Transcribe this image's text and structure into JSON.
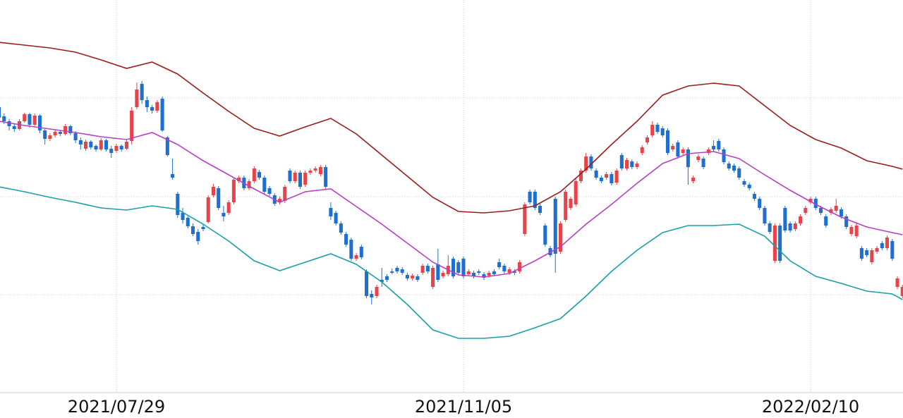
{
  "chart_data": {
    "type": "candlestick",
    "up_color": "#e8424a",
    "down_color": "#1e6fd0",
    "xlim": [
      0.2,
      177.1
    ],
    "ylim": [
      0,
      557
    ],
    "ygrid": [
      139,
      278,
      418
    ],
    "xticks": [
      {
        "value": 23,
        "label": "2021/07/29"
      },
      {
        "value": 91,
        "label": "2021/11/05"
      },
      {
        "value": 159,
        "label": "2022/02/10"
      }
    ],
    "candles": [
      [
        405,
        410,
        385,
        390
      ],
      [
        392,
        396,
        381,
        385
      ],
      [
        385,
        388,
        372,
        378
      ],
      [
        378,
        381,
        370,
        374
      ],
      [
        374,
        388,
        372,
        385
      ],
      [
        385,
        397,
        383,
        395
      ],
      [
        395,
        397,
        376,
        380
      ],
      [
        380,
        396,
        378,
        393
      ],
      [
        393,
        395,
        368,
        372
      ],
      [
        372,
        374,
        352,
        360
      ],
      [
        360,
        368,
        357,
        365
      ],
      [
        365,
        373,
        362,
        370
      ],
      [
        370,
        372,
        364,
        367
      ],
      [
        367,
        381,
        365,
        378
      ],
      [
        378,
        380,
        365,
        368
      ],
      [
        368,
        371,
        354,
        358
      ],
      [
        358,
        362,
        345,
        352
      ],
      [
        346,
        359,
        343,
        356
      ],
      [
        356,
        358,
        345,
        348
      ],
      [
        350,
        352,
        342,
        345
      ],
      [
        345,
        361,
        343,
        358
      ],
      [
        358,
        360,
        342,
        345
      ],
      [
        346,
        350,
        333,
        340
      ],
      [
        343,
        353,
        340,
        350
      ],
      [
        350,
        352,
        342,
        345
      ],
      [
        346,
        359,
        344,
        356
      ],
      [
        357,
        405,
        352,
        400
      ],
      [
        405,
        440,
        402,
        430
      ],
      [
        438,
        442,
        410,
        415
      ],
      [
        415,
        420,
        398,
        405
      ],
      [
        405,
        408,
        396,
        400
      ],
      [
        400,
        415,
        397,
        412
      ],
      [
        417,
        420,
        370,
        372
      ],
      [
        362,
        364,
        335,
        337
      ],
      [
        310,
        332,
        302,
        305
      ],
      [
        282,
        285,
        248,
        252
      ],
      [
        255,
        262,
        240,
        245
      ],
      [
        248,
        250,
        233,
        236
      ],
      [
        236,
        240,
        222,
        225
      ],
      [
        228,
        232,
        210,
        215
      ],
      [
        235,
        238,
        229,
        232
      ],
      [
        242,
        280,
        240,
        277
      ],
      [
        280,
        296,
        277,
        292
      ],
      [
        290,
        293,
        259,
        262
      ],
      [
        255,
        265,
        243,
        250
      ],
      [
        255,
        273,
        252,
        270
      ],
      [
        270,
        305,
        267,
        302
      ],
      [
        300,
        308,
        297,
        305
      ],
      [
        305,
        308,
        287,
        290
      ],
      [
        290,
        303,
        287,
        300
      ],
      [
        300,
        321,
        297,
        318
      ],
      [
        313,
        316,
        302,
        305
      ],
      [
        305,
        308,
        282,
        285
      ],
      [
        290,
        293,
        279,
        282
      ],
      [
        280,
        283,
        265,
        268
      ],
      [
        270,
        278,
        267,
        275
      ],
      [
        272,
        295,
        269,
        292
      ],
      [
        315,
        318,
        297,
        300
      ],
      [
        300,
        315,
        297,
        312
      ],
      [
        312,
        315,
        289,
        292
      ],
      [
        295,
        315,
        292,
        312
      ],
      [
        312,
        318,
        309,
        315
      ],
      [
        315,
        321,
        312,
        318
      ],
      [
        310,
        323,
        307,
        320
      ],
      [
        320,
        323,
        289,
        292
      ],
      [
        262,
        270,
        245,
        250
      ],
      [
        255,
        258,
        237,
        240
      ],
      [
        240,
        243,
        224,
        227
      ],
      [
        225,
        228,
        207,
        210
      ],
      [
        217,
        220,
        187,
        190
      ],
      [
        190,
        198,
        187,
        195
      ],
      [
        207,
        210,
        189,
        192
      ],
      [
        172,
        175,
        134,
        137
      ],
      [
        140,
        145,
        125,
        135
      ],
      [
        137,
        153,
        134,
        150
      ],
      [
        160,
        177,
        150,
        157
      ],
      [
        165,
        168,
        157,
        160
      ],
      [
        172,
        176,
        168,
        170
      ],
      [
        177,
        180,
        169,
        172
      ],
      [
        175,
        178,
        167,
        170
      ],
      [
        167,
        170,
        159,
        162
      ],
      [
        162,
        169,
        159,
        166
      ],
      [
        165,
        168,
        157,
        160
      ],
      [
        170,
        183,
        167,
        180
      ],
      [
        180,
        183,
        169,
        172
      ],
      [
        150,
        180,
        147,
        177
      ],
      [
        182,
        204,
        157,
        160
      ],
      [
        165,
        173,
        162,
        170
      ],
      [
        168,
        195,
        165,
        180
      ],
      [
        190,
        193,
        162,
        165
      ],
      [
        185,
        188,
        167,
        170
      ],
      [
        190,
        193,
        162,
        165
      ],
      [
        168,
        175,
        165,
        172
      ],
      [
        170,
        173,
        162,
        165
      ],
      [
        172,
        175,
        167,
        170
      ],
      [
        168,
        171,
        160,
        163
      ],
      [
        166,
        173,
        163,
        170
      ],
      [
        172,
        175,
        165,
        168
      ],
      [
        185,
        190,
        175,
        178
      ],
      [
        180,
        183,
        169,
        172
      ],
      [
        170,
        178,
        167,
        175
      ],
      [
        172,
        175,
        167,
        170
      ],
      [
        172,
        188,
        169,
        185
      ],
      [
        225,
        270,
        222,
        267
      ],
      [
        285,
        288,
        267,
        270
      ],
      [
        285,
        288,
        259,
        262
      ],
      [
        265,
        268,
        252,
        255
      ],
      [
        237,
        240,
        207,
        210
      ],
      [
        205,
        208,
        192,
        195
      ],
      [
        275,
        278,
        170,
        197
      ],
      [
        200,
        243,
        197,
        240
      ],
      [
        245,
        288,
        242,
        285
      ],
      [
        262,
        278,
        259,
        275
      ],
      [
        267,
        303,
        264,
        300
      ],
      [
        300,
        318,
        297,
        315
      ],
      [
        315,
        340,
        312,
        335
      ],
      [
        335,
        338,
        315,
        318
      ],
      [
        315,
        318,
        302,
        305
      ],
      [
        305,
        308,
        297,
        300
      ],
      [
        305,
        313,
        302,
        310
      ],
      [
        310,
        313,
        294,
        297
      ],
      [
        298,
        318,
        295,
        315
      ],
      [
        337,
        340,
        315,
        318
      ],
      [
        318,
        333,
        315,
        330
      ],
      [
        328,
        331,
        317,
        320
      ],
      [
        320,
        328,
        317,
        325
      ],
      [
        340,
        351,
        337,
        348
      ],
      [
        355,
        365,
        352,
        362
      ],
      [
        365,
        385,
        362,
        380
      ],
      [
        380,
        383,
        367,
        370
      ],
      [
        375,
        378,
        362,
        365
      ],
      [
        372,
        375,
        337,
        340
      ],
      [
        345,
        353,
        342,
        350
      ],
      [
        355,
        358,
        332,
        335
      ],
      [
        340,
        348,
        337,
        345
      ],
      [
        345,
        348,
        295,
        320
      ],
      [
        300,
        308,
        297,
        305
      ],
      [
        330,
        338,
        327,
        335
      ],
      [
        332,
        335,
        317,
        320
      ],
      [
        340,
        348,
        337,
        345
      ],
      [
        350,
        358,
        342,
        345
      ],
      [
        357,
        360,
        342,
        345
      ],
      [
        345,
        348,
        324,
        327
      ],
      [
        325,
        328,
        315,
        318
      ],
      [
        322,
        325,
        312,
        315
      ],
      [
        318,
        321,
        302,
        305
      ],
      [
        300,
        303,
        292,
        295
      ],
      [
        295,
        298,
        287,
        290
      ],
      [
        282,
        285,
        272,
        275
      ],
      [
        275,
        278,
        259,
        262
      ],
      [
        262,
        265,
        237,
        240
      ],
      [
        240,
        243,
        225,
        228
      ],
      [
        187,
        240,
        184,
        237
      ],
      [
        237,
        240,
        184,
        187
      ],
      [
        262,
        265,
        227,
        230
      ],
      [
        240,
        243,
        227,
        230
      ],
      [
        232,
        243,
        229,
        240
      ],
      [
        240,
        253,
        237,
        250
      ],
      [
        255,
        265,
        252,
        262
      ],
      [
        270,
        278,
        267,
        275
      ],
      [
        275,
        278,
        259,
        262
      ],
      [
        262,
        265,
        252,
        255
      ],
      [
        250,
        253,
        234,
        237
      ],
      [
        255,
        263,
        252,
        260
      ],
      [
        258,
        275,
        255,
        265
      ],
      [
        260,
        263,
        247,
        250
      ],
      [
        250,
        253,
        232,
        235
      ],
      [
        225,
        238,
        222,
        235
      ],
      [
        222,
        240,
        219,
        237
      ],
      [
        205,
        208,
        187,
        190
      ],
      [
        202,
        205,
        192,
        195
      ],
      [
        185,
        205,
        182,
        202
      ],
      [
        200,
        208,
        197,
        205
      ],
      [
        212,
        215,
        202,
        205
      ],
      [
        205,
        223,
        202,
        220
      ],
      [
        215,
        218,
        187,
        190
      ],
      [
        150,
        165,
        147,
        162
      ],
      [
        137,
        153,
        134,
        150
      ]
    ],
    "bands": {
      "x": [
        0,
        5,
        10,
        15,
        20,
        25,
        30,
        35,
        40,
        45,
        50,
        55,
        60,
        65,
        70,
        75,
        80,
        85,
        90,
        95,
        100,
        105,
        110,
        115,
        120,
        125,
        130,
        135,
        140,
        145,
        150,
        155,
        160,
        165,
        170,
        175,
        177
      ],
      "series": [
        {
          "color": "#9b1b1b",
          "values": [
            497,
            493,
            489,
            483,
            472,
            460,
            469,
            452,
            425,
            399,
            375,
            364,
            377,
            389,
            367,
            337,
            307,
            277,
            257,
            255,
            258,
            265,
            285,
            317,
            352,
            385,
            422,
            435,
            439,
            435,
            407,
            379,
            359,
            347,
            329,
            321,
            317
          ]
        },
        {
          "color": "#b63fc5",
          "values": [
            385,
            379,
            374,
            369,
            363,
            359,
            369,
            352,
            329,
            309,
            289,
            270,
            285,
            289,
            264,
            239,
            212,
            185,
            167,
            164,
            169,
            187,
            207,
            239,
            267,
            297,
            325,
            339,
            342,
            332,
            309,
            287,
            267,
            249,
            235,
            227,
            224
          ]
        },
        {
          "color": "#1a9ea8",
          "values": [
            292,
            285,
            277,
            270,
            262,
            259,
            265,
            260,
            239,
            215,
            187,
            173,
            185,
            197,
            182,
            157,
            125,
            89,
            77,
            77,
            80,
            92,
            105,
            137,
            172,
            202,
            227,
            237,
            237,
            239,
            222,
            187,
            165,
            155,
            144,
            140,
            132
          ]
        }
      ]
    }
  }
}
